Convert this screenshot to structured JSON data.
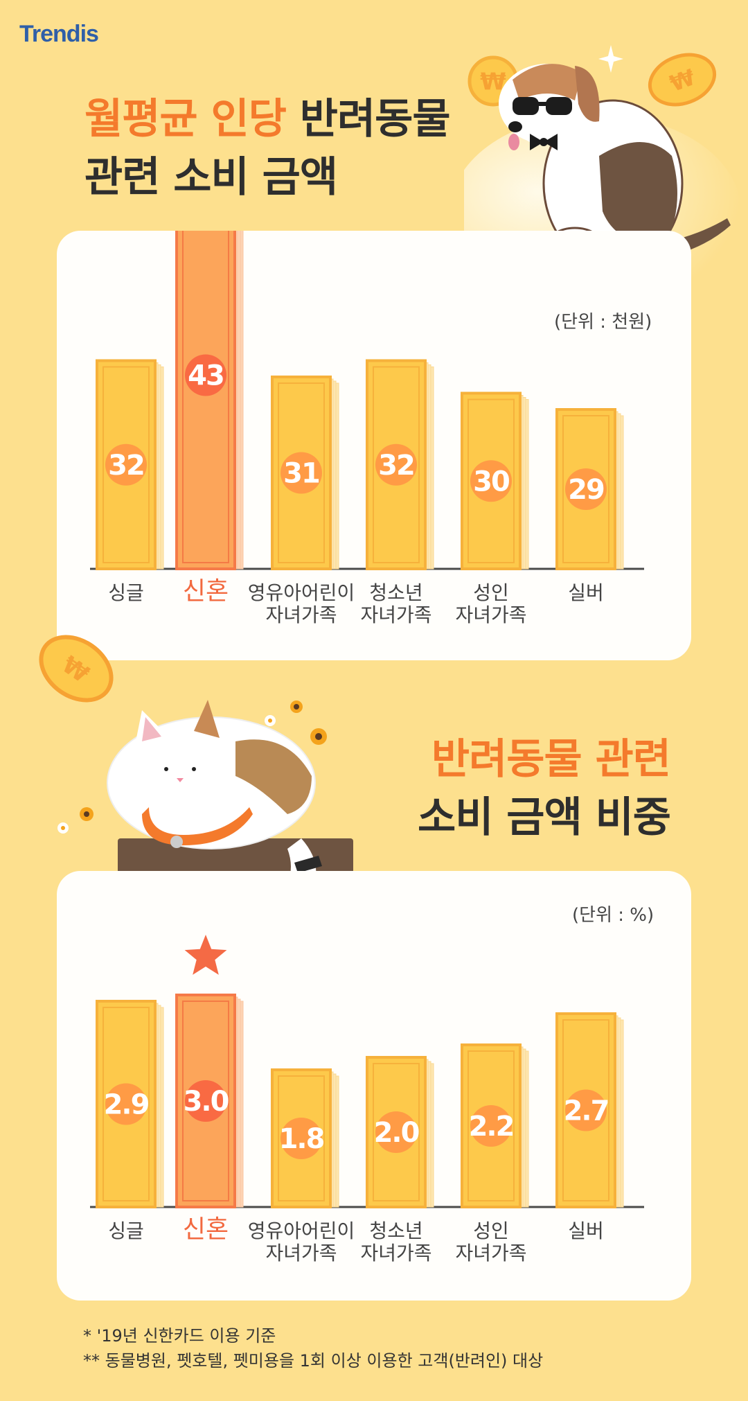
{
  "logo": "Trendis",
  "section1": {
    "title_orange": "월평균 인당",
    "title_dark_1": "반려동물",
    "title_dark_2": "관련 소비 금액",
    "unit": "(단위 : 천원)"
  },
  "section2": {
    "title_orange": "반려동물 관련",
    "title_dark": "소비 금액 비중",
    "unit": "(단위 : %)"
  },
  "chart_data": [
    {
      "type": "bar",
      "title": "월평균 인당 반려동물 관련 소비 금액",
      "unit": "(단위 : 천원)",
      "categories": [
        "싱글",
        "신혼",
        "영유아어린이 자녀가족",
        "청소년 자녀가족",
        "성인 자녀가족",
        "실버"
      ],
      "values": [
        32,
        43,
        31,
        32,
        30,
        29
      ],
      "value_labels": [
        "32",
        "43",
        "31",
        "32",
        "30",
        "29"
      ],
      "highlight": "신혼",
      "ylim": [
        0,
        50
      ],
      "grid": false
    },
    {
      "type": "bar",
      "title": "반려동물 관련 소비 금액 비중",
      "unit": "(단위 : %)",
      "categories": [
        "싱글",
        "신혼",
        "영유아어린이 자녀가족",
        "청소년 자녀가족",
        "성인 자녀가족",
        "실버"
      ],
      "values": [
        2.9,
        3.0,
        1.8,
        2.0,
        2.2,
        2.7
      ],
      "value_labels": [
        "2.9",
        "3.0",
        "1.8",
        "2.0",
        "2.2",
        "2.7"
      ],
      "highlight": "신혼",
      "ylim": [
        0,
        3.5
      ],
      "grid": false
    }
  ],
  "footnotes": [
    "* '19년 신한카드 이용 기준",
    "**  동물병원, 펫호텔, 펫미용을 1회 이상 이용한 고객(반려인) 대상"
  ],
  "colors": {
    "background": "#fde08e",
    "bar": "#fdc94b",
    "bar_highlight": "#fca55a",
    "circle": "#ff9b45",
    "circle_highlight": "#f96a43",
    "label_highlight": "#f2693f",
    "star": "#f46a45"
  }
}
